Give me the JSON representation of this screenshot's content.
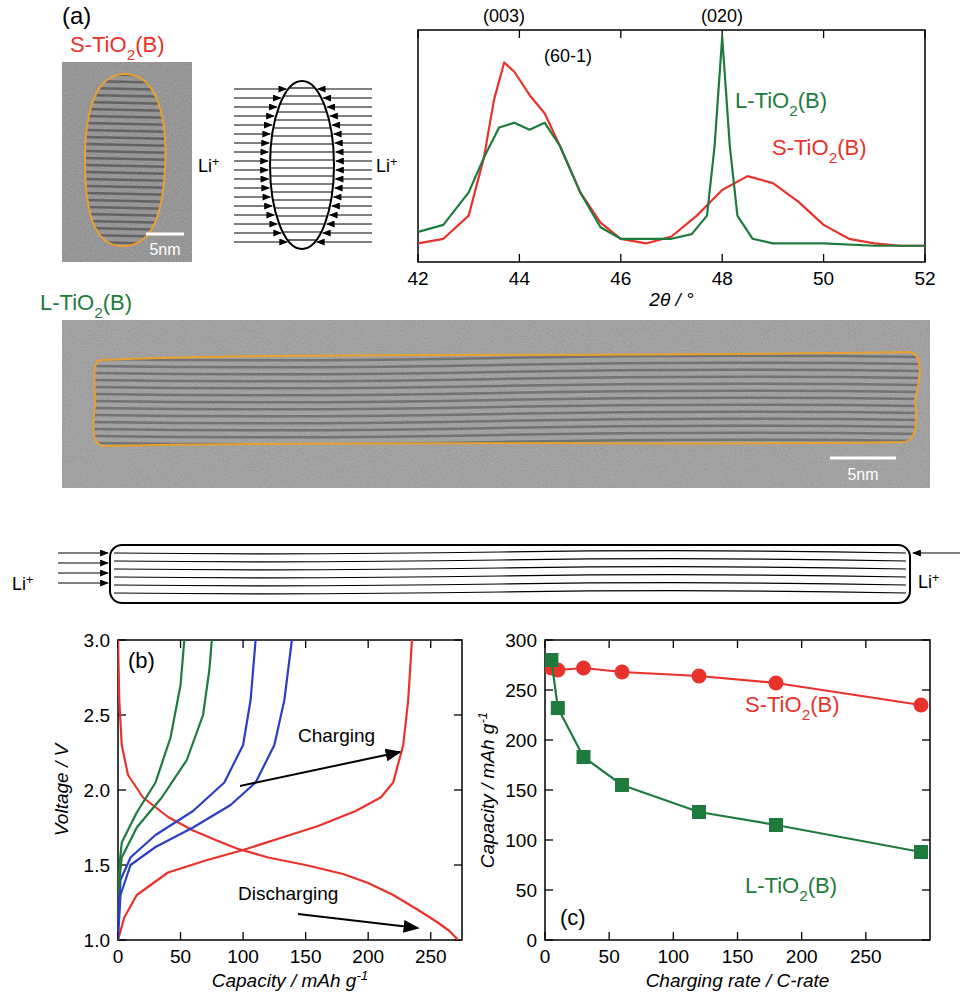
{
  "figure": {
    "panel_label": "(a)",
    "s_label": "S-TiO2(B)",
    "l_label": "L-TiO2(B)",
    "scale_bars": [
      "5nm",
      "5nm"
    ],
    "ion_labels": [
      "Li+",
      "Li+",
      "Li+",
      "Li+"
    ]
  },
  "chart_data": [
    {
      "type": "line",
      "xlabel": "2θ / °",
      "xlim": [
        42,
        52
      ],
      "xticks": [
        42,
        44,
        46,
        48,
        50,
        52
      ],
      "ylim": [
        0,
        1
      ],
      "yticks": [],
      "tick_labels": "x",
      "annotations": [
        "(003)",
        "(60-1)",
        "(020)"
      ],
      "series": [
        {
          "name": "S-TiO2(B)",
          "color": "#e8322b",
          "x": [
            42,
            42.5,
            43,
            43.3,
            43.5,
            43.7,
            43.9,
            44.2,
            44.5,
            44.8,
            45.2,
            45.6,
            46,
            46.5,
            47,
            47.5,
            48,
            48.5,
            49,
            49.5,
            50,
            50.5,
            51,
            51.5,
            52
          ],
          "values": [
            0.08,
            0.1,
            0.2,
            0.45,
            0.7,
            0.86,
            0.82,
            0.72,
            0.64,
            0.5,
            0.3,
            0.17,
            0.1,
            0.08,
            0.11,
            0.2,
            0.31,
            0.37,
            0.34,
            0.26,
            0.16,
            0.1,
            0.08,
            0.07,
            0.07
          ]
        },
        {
          "name": "L-TiO2(B)",
          "color": "#1f7a3e",
          "x": [
            42,
            42.5,
            43,
            43.3,
            43.6,
            43.9,
            44.2,
            44.5,
            44.8,
            45.2,
            45.6,
            46,
            46.5,
            47,
            47.4,
            47.7,
            47.85,
            48,
            48.15,
            48.3,
            48.6,
            49,
            50,
            51,
            52
          ],
          "values": [
            0.13,
            0.16,
            0.3,
            0.45,
            0.58,
            0.6,
            0.57,
            0.6,
            0.5,
            0.3,
            0.15,
            0.1,
            0.1,
            0.1,
            0.12,
            0.2,
            0.5,
            0.97,
            0.5,
            0.2,
            0.1,
            0.08,
            0.08,
            0.07,
            0.07
          ]
        }
      ]
    },
    {
      "type": "line",
      "panel_label": "(b)",
      "xlabel": "Capacity / mAh g-1",
      "ylabel": "Voltage / V",
      "xlim": [
        0,
        275
      ],
      "xticks": [
        0,
        50,
        100,
        150,
        200,
        250
      ],
      "ylim": [
        1,
        3
      ],
      "yticks": [
        {
          "value": 1.0,
          "label": "1.0"
        },
        {
          "value": 1.5,
          "label": "1.5"
        },
        {
          "value": 2.0,
          "label": "2.0"
        },
        {
          "value": 2.5,
          "label": "2.5"
        },
        {
          "value": 3.0,
          "label": "3.0"
        }
      ],
      "annotations": [
        "Charging",
        "Discharging"
      ],
      "series": [
        {
          "color": "#e8322b",
          "x": [
            0,
            1,
            3,
            8,
            20,
            40,
            60,
            80,
            95,
            120,
            150,
            180,
            200,
            220,
            240,
            255,
            265,
            272
          ],
          "values": [
            3.0,
            2.6,
            2.3,
            2.1,
            1.95,
            1.82,
            1.73,
            1.66,
            1.61,
            1.55,
            1.5,
            1.44,
            1.38,
            1.3,
            1.2,
            1.12,
            1.06,
            1.0
          ]
        },
        {
          "color": "#e8322b",
          "x": [
            0,
            5,
            15,
            40,
            70,
            100,
            130,
            160,
            190,
            210,
            220,
            228,
            232,
            235
          ],
          "values": [
            1.0,
            1.15,
            1.3,
            1.45,
            1.53,
            1.6,
            1.68,
            1.76,
            1.86,
            1.95,
            2.05,
            2.3,
            2.6,
            3.0
          ]
        },
        {
          "color": "#2b3fc4",
          "x": [
            0,
            2,
            10,
            30,
            60,
            90,
            110,
            125,
            133,
            139
          ],
          "values": [
            1.0,
            1.3,
            1.5,
            1.62,
            1.75,
            1.9,
            2.05,
            2.3,
            2.6,
            3.0
          ]
        },
        {
          "color": "#2b3fc4",
          "x": [
            0,
            2,
            10,
            30,
            60,
            85,
            100,
            106,
            110
          ],
          "values": [
            1.1,
            1.4,
            1.55,
            1.7,
            1.86,
            2.05,
            2.3,
            2.6,
            3.0
          ]
        },
        {
          "color": "#1f7a3e",
          "x": [
            0,
            3,
            15,
            35,
            55,
            68,
            73,
            75
          ],
          "values": [
            1.3,
            1.55,
            1.75,
            1.95,
            2.2,
            2.5,
            2.8,
            3.0
          ]
        },
        {
          "color": "#1f7a3e",
          "x": [
            0,
            3,
            15,
            30,
            42,
            50,
            53
          ],
          "values": [
            1.4,
            1.65,
            1.85,
            2.05,
            2.35,
            2.7,
            3.0
          ]
        }
      ]
    },
    {
      "type": "line",
      "panel_label": "(c)",
      "xlabel": "Charging rate / C-rate",
      "ylabel": "Capacity / mAh g-1",
      "xlim": [
        0,
        300
      ],
      "xticks": [
        0,
        50,
        100,
        150,
        200,
        250
      ],
      "ylim": [
        0,
        300
      ],
      "yticks": [
        0,
        50,
        100,
        150,
        200,
        250,
        300
      ],
      "series": [
        {
          "name": "S-TiO2(B)",
          "color": "#e8322b",
          "marker": "circle",
          "x": [
            5,
            10,
            30,
            60,
            120,
            180,
            293
          ],
          "values": [
            272,
            270,
            272,
            268,
            264,
            257,
            235
          ]
        },
        {
          "name": "L-TiO2(B)",
          "color": "#1f7a3e",
          "marker": "square",
          "x": [
            5,
            10,
            30,
            60,
            120,
            180,
            293
          ],
          "values": [
            280,
            232,
            183,
            155,
            128,
            115,
            88
          ]
        }
      ]
    }
  ]
}
